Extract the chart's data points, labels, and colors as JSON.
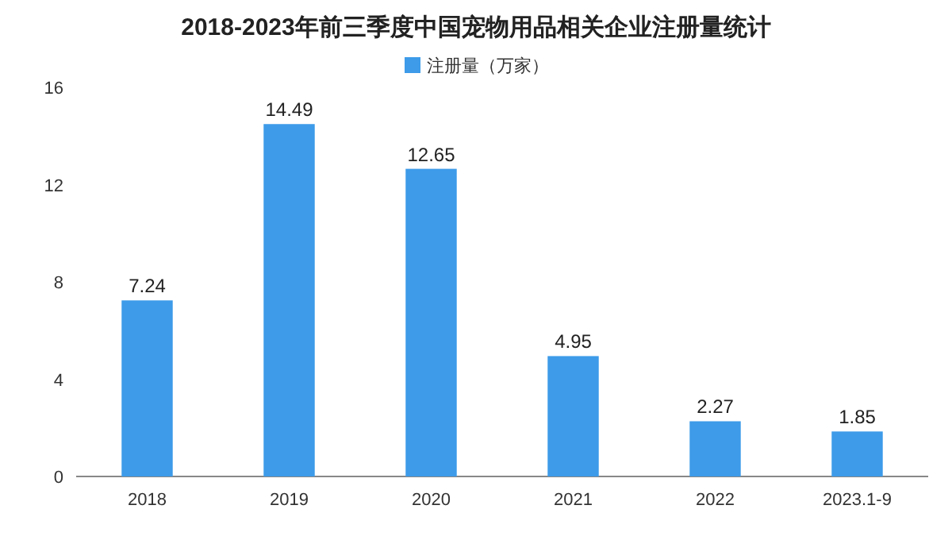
{
  "chart_data": {
    "type": "bar",
    "title": "2018-2023年前三季度中国宠物用品相关企业注册量统计",
    "categories": [
      "2018",
      "2019",
      "2020",
      "2021",
      "2022",
      "2023.1-9"
    ],
    "series": [
      {
        "name": "注册量（万家）",
        "color": "#3d9be9",
        "values": [
          7.24,
          14.49,
          12.65,
          4.95,
          2.27,
          1.85
        ]
      }
    ],
    "ylim": [
      0,
      16
    ],
    "yticks": [
      0,
      4,
      8,
      12,
      16
    ],
    "data_labels": true,
    "legend": "top"
  }
}
